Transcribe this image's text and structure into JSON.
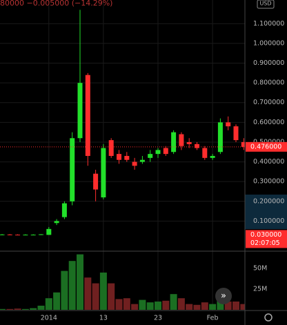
{
  "chart_data": {
    "type": "candlestick",
    "header_text": "80000  −0.005000 (−14.29%)",
    "currency": "USD",
    "categories": [
      null,
      null,
      null,
      null,
      null,
      null,
      "2014",
      null,
      null,
      null,
      null,
      null,
      null,
      "13",
      null,
      null,
      null,
      null,
      null,
      null,
      "23",
      null,
      null,
      null,
      null,
      null,
      null,
      "Feb",
      null,
      null,
      null,
      null
    ],
    "open": [
      0.031,
      0.032,
      0.031,
      0.03,
      0.031,
      0.031,
      0.03,
      0.09,
      0.12,
      0.2,
      0.52,
      0.84,
      0.34,
      0.22,
      0.51,
      0.44,
      0.43,
      0.4,
      0.4,
      0.42,
      0.44,
      0.47,
      0.45,
      0.54,
      0.5,
      0.49,
      0.47,
      0.42,
      0.45,
      0.6,
      0.58,
      0.5
    ],
    "high": [
      0.034,
      0.034,
      0.033,
      0.033,
      0.033,
      0.034,
      0.07,
      0.11,
      0.2,
      0.55,
      1.17,
      0.85,
      0.36,
      0.49,
      0.52,
      0.46,
      0.45,
      0.42,
      0.43,
      0.46,
      0.47,
      0.48,
      0.56,
      0.55,
      0.52,
      0.5,
      0.48,
      0.44,
      0.62,
      0.63,
      0.59,
      0.52
    ],
    "low": [
      0.029,
      0.029,
      0.029,
      0.028,
      0.029,
      0.029,
      0.03,
      0.08,
      0.11,
      0.18,
      0.5,
      0.38,
      0.2,
      0.21,
      0.42,
      0.39,
      0.4,
      0.36,
      0.39,
      0.4,
      0.42,
      0.43,
      0.44,
      0.46,
      0.47,
      0.46,
      0.41,
      0.41,
      0.44,
      0.56,
      0.5,
      0.46
    ],
    "close": [
      0.032,
      0.031,
      0.03,
      0.031,
      0.031,
      0.033,
      0.06,
      0.1,
      0.19,
      0.52,
      0.8,
      0.43,
      0.26,
      0.47,
      0.43,
      0.41,
      0.41,
      0.38,
      0.41,
      0.44,
      0.46,
      0.44,
      0.55,
      0.48,
      0.49,
      0.47,
      0.42,
      0.43,
      0.6,
      0.58,
      0.51,
      0.476
    ],
    "volume": [
      1,
      1,
      1.5,
      1,
      2,
      5,
      14,
      21,
      47,
      59,
      67,
      39,
      32,
      45,
      32,
      13,
      14,
      7,
      12,
      9,
      10,
      11,
      19,
      14,
      7,
      6,
      9,
      7,
      21,
      10,
      10,
      7
    ],
    "up_color": "#22e02a",
    "down_color": "#ff2d2d",
    "volume_up_color": "#1b6f22",
    "volume_down_color": "#702020",
    "ylim": [
      -0.049,
      1.22
    ],
    "yticks": [
      {
        "value": 0.1,
        "label": "0.100000"
      },
      {
        "value": 0.2,
        "label": "0.200000"
      },
      {
        "value": 0.3,
        "label": "0.300000"
      },
      {
        "value": 0.4,
        "label": "0.400000"
      },
      {
        "value": 0.5,
        "label": "0.500000"
      },
      {
        "value": 0.6,
        "label": "0.600000"
      },
      {
        "value": 0.7,
        "label": "0.700000"
      },
      {
        "value": 0.8,
        "label": "0.800000"
      },
      {
        "value": 0.9,
        "label": "0.900000"
      },
      {
        "value": 1.0,
        "label": "1.000000"
      },
      {
        "value": 1.1,
        "label": "1.100000"
      }
    ],
    "volume_ylim": [
      0,
      70
    ],
    "volume_ticks": [
      {
        "value": 25,
        "label": "25M"
      },
      {
        "value": 50,
        "label": "50M"
      }
    ],
    "last_price": {
      "value": 0.476,
      "label": "0.476000"
    },
    "marker_price": {
      "value": 0.03,
      "label": "0.030000"
    },
    "countdown": "02:07:05",
    "grid": true
  }
}
